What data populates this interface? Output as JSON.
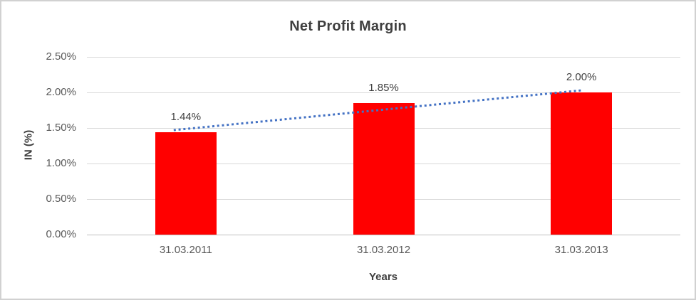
{
  "chart_data": {
    "type": "bar",
    "title": "Net Profit Margin",
    "xlabel": "Years",
    "ylabel": "IN (%)",
    "categories": [
      "31.03.2011",
      "31.03.2012",
      "31.03.2013"
    ],
    "values": [
      1.44,
      1.85,
      2.0
    ],
    "value_labels": [
      "1.44%",
      "1.85%",
      "2.00%"
    ],
    "ylim": [
      0,
      2.5
    ],
    "ytick_step": 0.5,
    "ytick_labels": [
      "0.00%",
      "0.50%",
      "1.00%",
      "1.50%",
      "2.00%",
      "2.50%"
    ],
    "grid": true,
    "legend": "none",
    "bar_color": "#ff0000",
    "gridline_color": "#d9d9d9",
    "axis_line_color": "#bfbfbf",
    "title_color": "#3f3f3f",
    "tick_label_color": "#595959",
    "data_label_color": "#404040",
    "trendline": {
      "style": "dotted",
      "color": "#4472c4",
      "start_value": 1.47,
      "end_value": 2.03
    }
  }
}
